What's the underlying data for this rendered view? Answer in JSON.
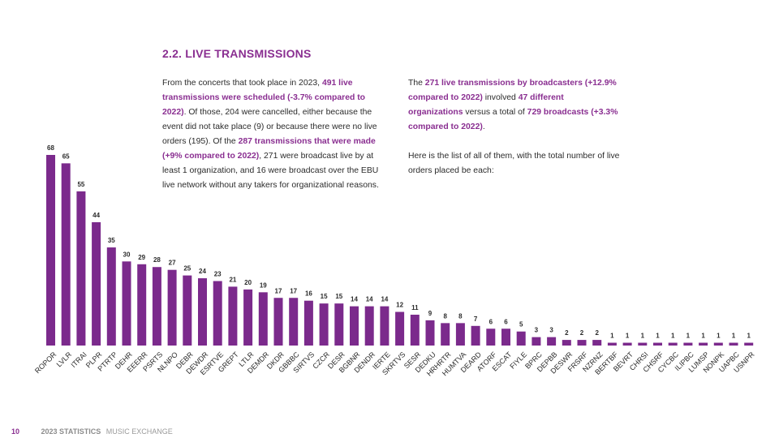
{
  "title": "2.2. LIVE TRANSMISSIONS",
  "left_col": [
    {
      "t": "From the concerts that took place in 2023, ",
      "h": false
    },
    {
      "t": "491 live transmissions were scheduled (-3.7% compared to 2022)",
      "h": true
    },
    {
      "t": ". Of those, 204 were cancelled, either because the event did not take place (9) or because there were no live orders (195). Of the ",
      "h": false
    },
    {
      "t": "287 transmissions that were made (+9% compared to 2022)",
      "h": true
    },
    {
      "t": ", 271 were broadcast live by at least 1 organization, and 16 were broadcast over the EBU live network without any takers for organizational reasons.",
      "h": false
    }
  ],
  "right_col_p1": [
    {
      "t": "The ",
      "h": false
    },
    {
      "t": "271 live transmissions by broadcasters (+12.9% compared to 2022)",
      "h": true
    },
    {
      "t": " involved ",
      "h": false
    },
    {
      "t": "47 different organizations",
      "h": true
    },
    {
      "t": " versus a total of ",
      "h": false
    },
    {
      "t": "729 broadcasts (+3.3% compared to 2022)",
      "h": true
    },
    {
      "t": ".",
      "h": false
    }
  ],
  "right_col_p2": "Here is the list of all of them, with the total number of live orders placed be each:",
  "chart_data": {
    "type": "bar",
    "categories": [
      "ROPOR",
      "LVLR",
      "ITRAI",
      "PLPR",
      "PTRTP",
      "DEHR",
      "EEERR",
      "PSRTS",
      "NLNPO",
      "DEBR",
      "DEWDR",
      "ESRTVE",
      "GREPT",
      "LTLR",
      "DEMDR",
      "DKDR",
      "GBBBC",
      "SIRTVS",
      "CZCR",
      "DESR",
      "BGBNR",
      "DENDR",
      "IERTE",
      "SKRTVS",
      "SESR",
      "DEDKU",
      "HRHRTR",
      "HUMTVA",
      "DEARD",
      "ATORF",
      "ESCAT",
      "FIYLE",
      "BPRC",
      "DEPBB",
      "DESWR",
      "FRSRF",
      "NZRNZ",
      "BERTBF",
      "BEVRT",
      "CHRSI",
      "CHSRF",
      "CYCBC",
      "ILIPBC",
      "LUMSP",
      "NONPK",
      "UAPBC",
      "USNPR"
    ],
    "values": [
      68,
      65,
      55,
      44,
      35,
      30,
      29,
      28,
      27,
      25,
      24,
      23,
      21,
      20,
      19,
      17,
      17,
      16,
      15,
      15,
      14,
      14,
      14,
      12,
      11,
      9,
      8,
      8,
      7,
      6,
      6,
      5,
      3,
      3,
      2,
      2,
      2,
      1,
      1,
      1,
      1,
      1,
      1,
      1,
      1,
      1,
      1
    ],
    "color": "#7b2a8c",
    "ylim": [
      0,
      68
    ],
    "grid": false,
    "legend": "none"
  },
  "footer": {
    "page_number": "10",
    "publication": "2023 STATISTICS",
    "section": "MUSIC EXCHANGE"
  }
}
